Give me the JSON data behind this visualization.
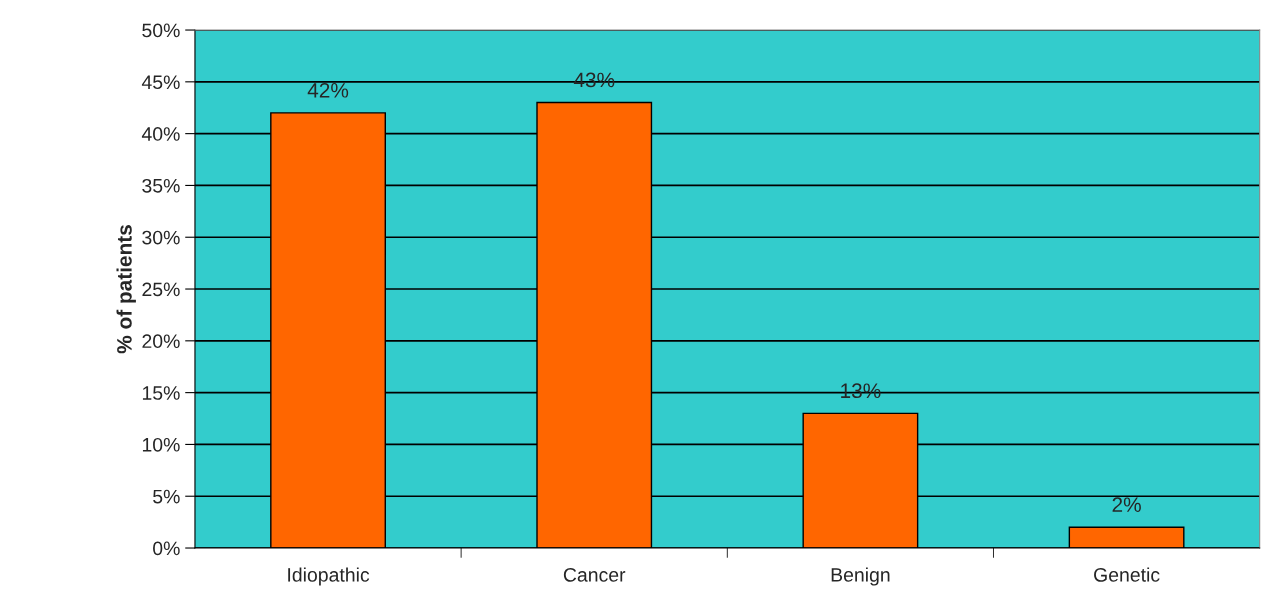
{
  "chart_data": {
    "type": "bar",
    "ylabel": "% of patients",
    "categories": [
      "Idiopathic",
      "Cancer",
      "Benign",
      "Genetic"
    ],
    "values": [
      42,
      43,
      13,
      2
    ],
    "value_labels": [
      "42%",
      "43%",
      "13%",
      "2%"
    ],
    "color": "#ff6600",
    "ylim": [
      0,
      50
    ],
    "yticks": [
      {
        "value": 0,
        "label": "0%"
      },
      {
        "value": 5,
        "label": "5%"
      },
      {
        "value": 10,
        "label": "10%"
      },
      {
        "value": 15,
        "label": "15%"
      },
      {
        "value": 20,
        "label": "20%"
      },
      {
        "value": 25,
        "label": "25%"
      },
      {
        "value": 30,
        "label": "30%"
      },
      {
        "value": 35,
        "label": "35%"
      },
      {
        "value": 40,
        "label": "40%"
      },
      {
        "value": 45,
        "label": "45%"
      },
      {
        "value": 50,
        "label": "50%"
      }
    ],
    "grid": "y",
    "legend": false
  }
}
